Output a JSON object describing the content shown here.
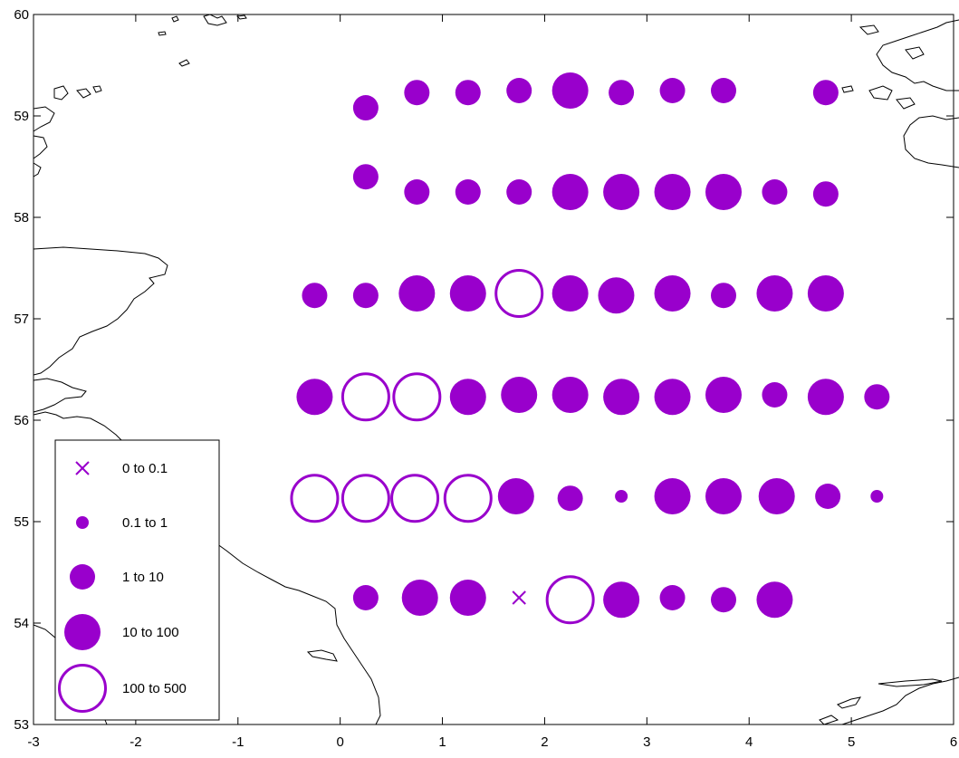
{
  "chart_data": {
    "type": "scatter",
    "title": "",
    "xlabel": "",
    "ylabel": "",
    "xlim": [
      -3,
      6
    ],
    "ylim": [
      53,
      60
    ],
    "x_ticks": [
      "-3",
      "-2",
      "-1",
      "0",
      "1",
      "2",
      "3",
      "4",
      "5",
      "6"
    ],
    "y_ticks": [
      "53",
      "54",
      "55",
      "56",
      "57",
      "58",
      "59",
      "60"
    ],
    "marker_color": "#9900cc",
    "legend": {
      "placement": "bottom-left",
      "entries": [
        {
          "label": "0  to  0.1",
          "class": 0
        },
        {
          "label": "0.1  to  1",
          "class": 1
        },
        {
          "label": "1  to  10",
          "class": 2
        },
        {
          "label": "10  to  100",
          "class": 3
        },
        {
          "label": "100  to  500",
          "class": 4
        }
      ]
    },
    "points": [
      {
        "lon": 0.25,
        "lat": 59.08,
        "class": 2
      },
      {
        "lon": 0.75,
        "lat": 59.23,
        "class": 2
      },
      {
        "lon": 1.25,
        "lat": 59.23,
        "class": 2
      },
      {
        "lon": 1.75,
        "lat": 59.25,
        "class": 2
      },
      {
        "lon": 2.25,
        "lat": 59.25,
        "class": 3
      },
      {
        "lon": 2.75,
        "lat": 59.23,
        "class": 2
      },
      {
        "lon": 3.25,
        "lat": 59.25,
        "class": 2
      },
      {
        "lon": 3.75,
        "lat": 59.25,
        "class": 2
      },
      {
        "lon": 4.75,
        "lat": 59.23,
        "class": 2
      },
      {
        "lon": 0.25,
        "lat": 58.4,
        "class": 2
      },
      {
        "lon": 0.75,
        "lat": 58.25,
        "class": 2
      },
      {
        "lon": 1.25,
        "lat": 58.25,
        "class": 2
      },
      {
        "lon": 1.75,
        "lat": 58.25,
        "class": 2
      },
      {
        "lon": 2.25,
        "lat": 58.25,
        "class": 3
      },
      {
        "lon": 2.75,
        "lat": 58.25,
        "class": 3
      },
      {
        "lon": 3.25,
        "lat": 58.25,
        "class": 3
      },
      {
        "lon": 3.75,
        "lat": 58.25,
        "class": 3
      },
      {
        "lon": 4.25,
        "lat": 58.25,
        "class": 2
      },
      {
        "lon": 4.75,
        "lat": 58.23,
        "class": 2
      },
      {
        "lon": -0.25,
        "lat": 57.23,
        "class": 2
      },
      {
        "lon": 0.25,
        "lat": 57.23,
        "class": 2
      },
      {
        "lon": 0.75,
        "lat": 57.25,
        "class": 3
      },
      {
        "lon": 1.25,
        "lat": 57.25,
        "class": 3
      },
      {
        "lon": 1.75,
        "lat": 57.25,
        "class": 4
      },
      {
        "lon": 2.25,
        "lat": 57.25,
        "class": 3
      },
      {
        "lon": 2.7,
        "lat": 57.23,
        "class": 3
      },
      {
        "lon": 3.25,
        "lat": 57.25,
        "class": 3
      },
      {
        "lon": 3.75,
        "lat": 57.23,
        "class": 2
      },
      {
        "lon": 4.25,
        "lat": 57.25,
        "class": 3
      },
      {
        "lon": 4.75,
        "lat": 57.25,
        "class": 3
      },
      {
        "lon": -0.25,
        "lat": 56.23,
        "class": 3
      },
      {
        "lon": 0.25,
        "lat": 56.23,
        "class": 4
      },
      {
        "lon": 0.75,
        "lat": 56.23,
        "class": 4
      },
      {
        "lon": 1.25,
        "lat": 56.23,
        "class": 3
      },
      {
        "lon": 1.75,
        "lat": 56.25,
        "class": 3
      },
      {
        "lon": 2.25,
        "lat": 56.25,
        "class": 3
      },
      {
        "lon": 2.75,
        "lat": 56.23,
        "class": 3
      },
      {
        "lon": 3.25,
        "lat": 56.23,
        "class": 3
      },
      {
        "lon": 3.75,
        "lat": 56.25,
        "class": 3
      },
      {
        "lon": 4.25,
        "lat": 56.25,
        "class": 2
      },
      {
        "lon": 4.75,
        "lat": 56.23,
        "class": 3
      },
      {
        "lon": 5.25,
        "lat": 56.23,
        "class": 2
      },
      {
        "lon": -0.25,
        "lat": 55.23,
        "class": 4
      },
      {
        "lon": 0.25,
        "lat": 55.23,
        "class": 4
      },
      {
        "lon": 0.73,
        "lat": 55.23,
        "class": 4
      },
      {
        "lon": 1.25,
        "lat": 55.23,
        "class": 4
      },
      {
        "lon": 1.72,
        "lat": 55.25,
        "class": 3
      },
      {
        "lon": 2.25,
        "lat": 55.23,
        "class": 2
      },
      {
        "lon": 2.75,
        "lat": 55.25,
        "class": 1
      },
      {
        "lon": 3.25,
        "lat": 55.25,
        "class": 3
      },
      {
        "lon": 3.75,
        "lat": 55.25,
        "class": 3
      },
      {
        "lon": 4.27,
        "lat": 55.25,
        "class": 3
      },
      {
        "lon": 4.77,
        "lat": 55.25,
        "class": 2
      },
      {
        "lon": 5.25,
        "lat": 55.25,
        "class": 1
      },
      {
        "lon": 0.25,
        "lat": 54.25,
        "class": 2
      },
      {
        "lon": 0.78,
        "lat": 54.25,
        "class": 3
      },
      {
        "lon": 1.25,
        "lat": 54.25,
        "class": 3
      },
      {
        "lon": 1.75,
        "lat": 54.25,
        "class": 0
      },
      {
        "lon": 2.25,
        "lat": 54.23,
        "class": 4
      },
      {
        "lon": 2.75,
        "lat": 54.23,
        "class": 3
      },
      {
        "lon": 3.25,
        "lat": 54.25,
        "class": 2
      },
      {
        "lon": 3.75,
        "lat": 54.23,
        "class": 2
      },
      {
        "lon": 4.25,
        "lat": 54.23,
        "class": 3
      }
    ]
  }
}
